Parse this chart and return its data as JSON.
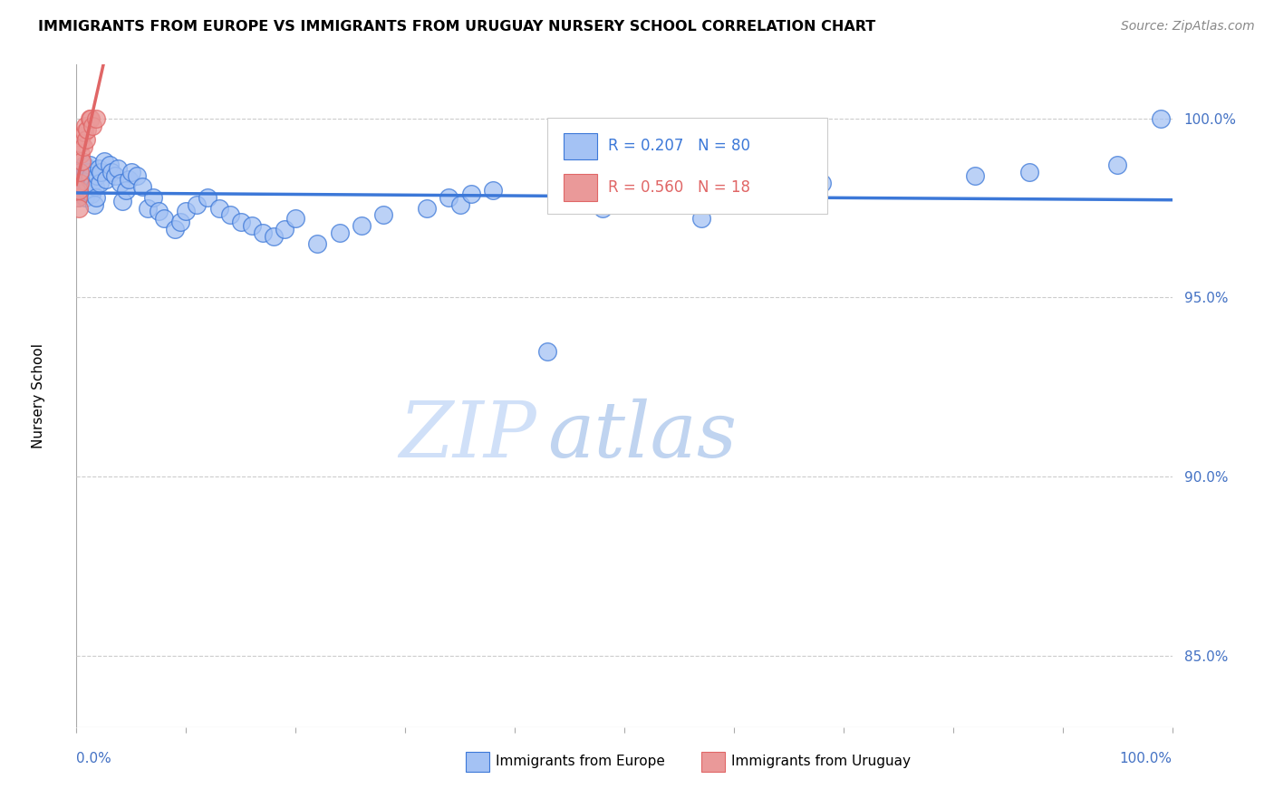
{
  "title": "IMMIGRANTS FROM EUROPE VS IMMIGRANTS FROM URUGUAY NURSERY SCHOOL CORRELATION CHART",
  "source": "Source: ZipAtlas.com",
  "ylabel": "Nursery School",
  "xlim": [
    0.0,
    1.0
  ],
  "ylim": [
    83.0,
    101.5
  ],
  "yticks": [
    85.0,
    90.0,
    95.0,
    100.0
  ],
  "legend_europe": "Immigrants from Europe",
  "legend_uruguay": "Immigrants from Uruguay",
  "R_europe": 0.207,
  "N_europe": 80,
  "R_uruguay": 0.56,
  "N_uruguay": 18,
  "blue_scatter": "#a4c2f4",
  "blue_edge": "#3c78d8",
  "pink_scatter": "#ea9999",
  "pink_edge": "#e06666",
  "blue_line": "#3c78d8",
  "pink_line": "#e06666",
  "axis_color": "#4472c4",
  "grid_color": "#cccccc",
  "watermark_zip": "#d0e0f8",
  "watermark_atlas": "#c0d4f0",
  "europe_x": [
    0.001,
    0.002,
    0.003,
    0.003,
    0.004,
    0.004,
    0.005,
    0.005,
    0.006,
    0.007,
    0.007,
    0.008,
    0.008,
    0.009,
    0.009,
    0.01,
    0.01,
    0.011,
    0.012,
    0.012,
    0.013,
    0.014,
    0.015,
    0.016,
    0.017,
    0.018,
    0.019,
    0.02,
    0.021,
    0.022,
    0.025,
    0.027,
    0.03,
    0.032,
    0.035,
    0.038,
    0.04,
    0.042,
    0.045,
    0.048,
    0.05,
    0.055,
    0.06,
    0.065,
    0.07,
    0.075,
    0.08,
    0.09,
    0.095,
    0.1,
    0.11,
    0.12,
    0.13,
    0.14,
    0.15,
    0.16,
    0.17,
    0.18,
    0.19,
    0.2,
    0.22,
    0.24,
    0.26,
    0.28,
    0.32,
    0.34,
    0.35,
    0.36,
    0.38,
    0.43,
    0.45,
    0.48,
    0.57,
    0.6,
    0.64,
    0.68,
    0.82,
    0.87,
    0.95,
    0.99
  ],
  "europe_y": [
    97.8,
    98.2,
    98.5,
    97.9,
    98.4,
    98.0,
    98.6,
    98.1,
    98.3,
    98.7,
    98.2,
    98.5,
    97.8,
    98.4,
    98.0,
    98.6,
    98.2,
    98.5,
    98.3,
    98.7,
    98.4,
    97.9,
    98.2,
    97.6,
    98.1,
    97.8,
    98.4,
    98.6,
    98.2,
    98.5,
    98.8,
    98.3,
    98.7,
    98.5,
    98.4,
    98.6,
    98.2,
    97.7,
    98.0,
    98.3,
    98.5,
    98.4,
    98.1,
    97.5,
    97.8,
    97.4,
    97.2,
    96.9,
    97.1,
    97.4,
    97.6,
    97.8,
    97.5,
    97.3,
    97.1,
    97.0,
    96.8,
    96.7,
    96.9,
    97.2,
    96.5,
    96.8,
    97.0,
    97.3,
    97.5,
    97.8,
    97.6,
    97.9,
    98.0,
    93.5,
    97.8,
    97.5,
    97.2,
    97.6,
    98.0,
    98.2,
    98.4,
    98.5,
    98.7,
    100.0
  ],
  "uruguay_x": [
    0.001,
    0.002,
    0.002,
    0.003,
    0.003,
    0.004,
    0.004,
    0.005,
    0.005,
    0.006,
    0.007,
    0.008,
    0.009,
    0.01,
    0.012,
    0.013,
    0.015,
    0.018
  ],
  "uruguay_y": [
    97.8,
    97.5,
    98.0,
    98.2,
    98.5,
    99.0,
    99.3,
    98.8,
    99.5,
    99.2,
    99.6,
    99.8,
    99.4,
    99.7,
    100.0,
    100.0,
    99.8,
    100.0
  ]
}
